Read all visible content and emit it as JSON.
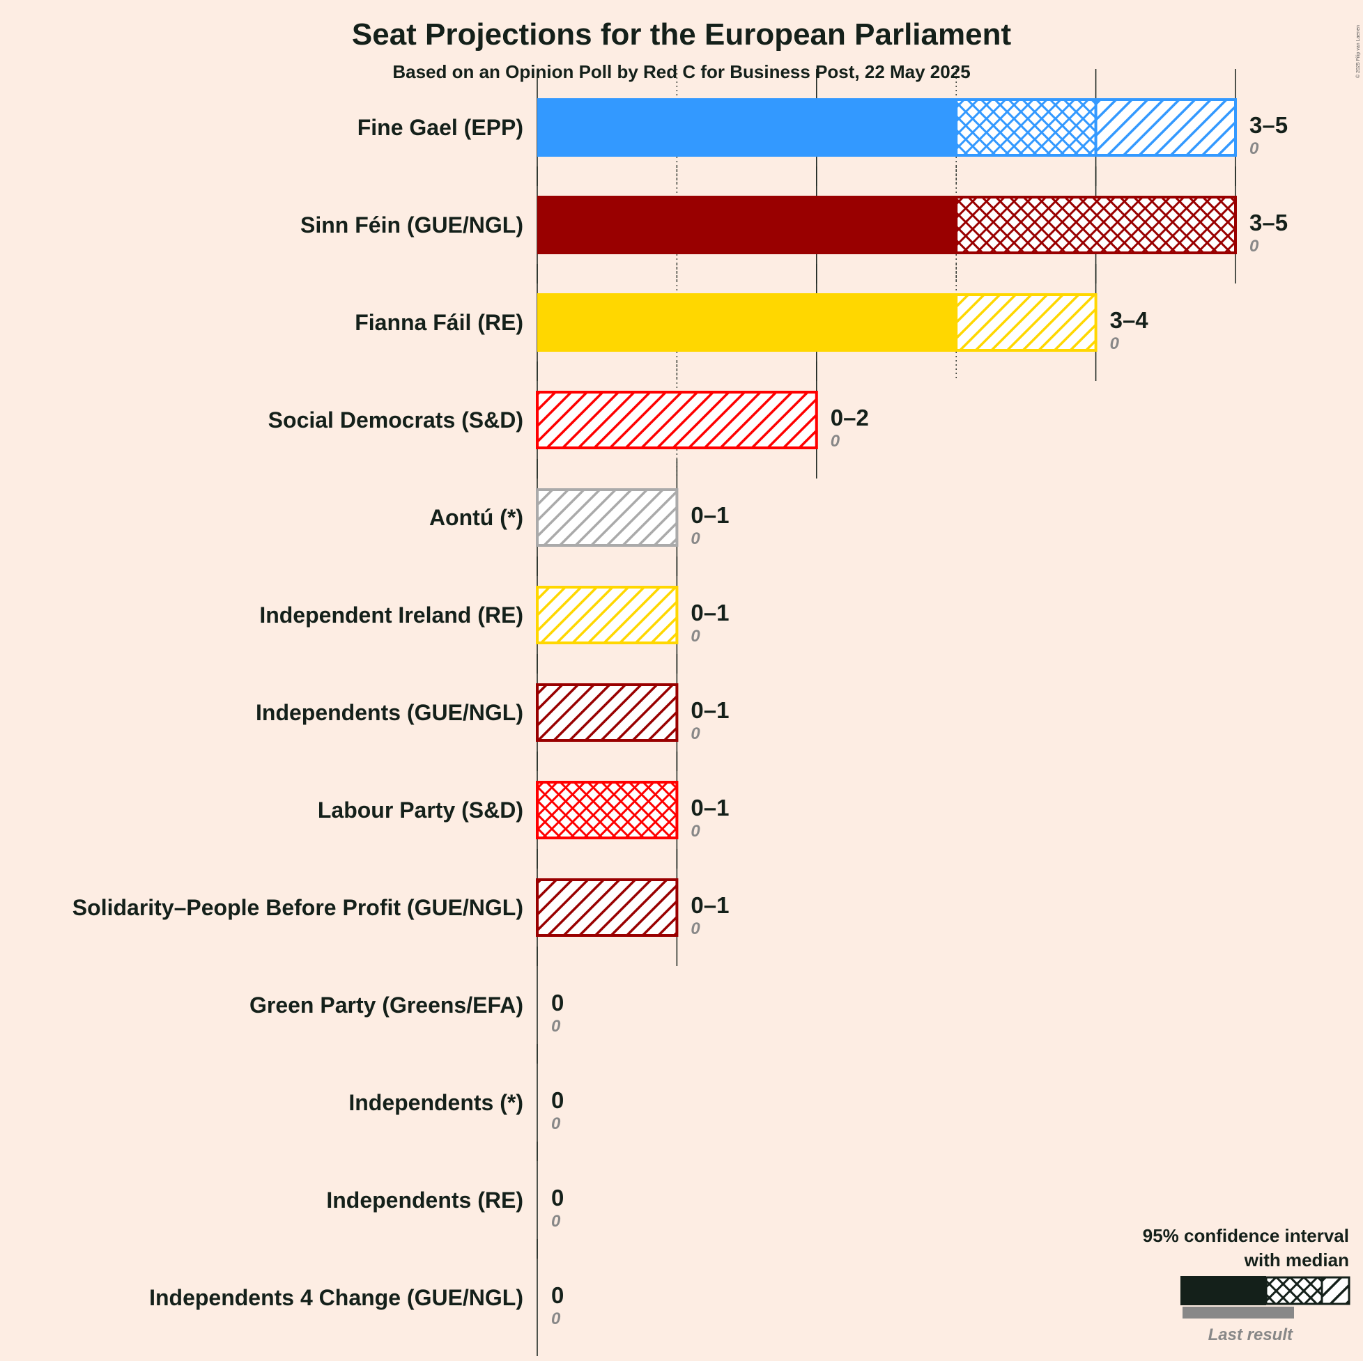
{
  "chart_data": {
    "type": "bar",
    "title": "Seat Projections for the European Parliament",
    "subtitle": "Based on an Opinion Poll by Red C for Business Post, 22 May 2025",
    "copyright": "© 2025 Filip van Laenen",
    "xlim": [
      0,
      5
    ],
    "legend": {
      "title_line1": "95% confidence interval",
      "title_line2": "with median",
      "last_result": "Last result",
      "placement": "bottom-right"
    },
    "parties": [
      {
        "name": "Fine Gael (EPP)",
        "low": 3,
        "median": 4,
        "high": 5,
        "range_label": "3–5",
        "last_result": "0",
        "color": "#3399FF"
      },
      {
        "name": "Sinn Féin (GUE/NGL)",
        "low": 3,
        "median": 5,
        "high": 5,
        "range_label": "3–5",
        "last_result": "0",
        "color": "#990000"
      },
      {
        "name": "Fianna Fáil (RE)",
        "low": 3,
        "median": 3,
        "high": 4,
        "range_label": "3–4",
        "last_result": "0",
        "color": "#FFD700"
      },
      {
        "name": "Social Democrats (S&D)",
        "low": 0,
        "median": 0,
        "high": 2,
        "range_label": "0–2",
        "last_result": "0",
        "color": "#FF0000"
      },
      {
        "name": "Aontú (*)",
        "low": 0,
        "median": 0,
        "high": 1,
        "range_label": "0–1",
        "last_result": "0",
        "color": "#AAAAAA"
      },
      {
        "name": "Independent Ireland (RE)",
        "low": 0,
        "median": 0,
        "high": 1,
        "range_label": "0–1",
        "last_result": "0",
        "color": "#FFD700"
      },
      {
        "name": "Independents (GUE/NGL)",
        "low": 0,
        "median": 0,
        "high": 1,
        "range_label": "0–1",
        "last_result": "0",
        "color": "#990000"
      },
      {
        "name": "Labour Party (S&D)",
        "low": 0,
        "median": 1,
        "high": 1,
        "range_label": "0–1",
        "last_result": "0",
        "color": "#FF0000"
      },
      {
        "name": "Solidarity–People Before Profit (GUE/NGL)",
        "low": 0,
        "median": 0,
        "high": 1,
        "range_label": "0–1",
        "last_result": "0",
        "color": "#990000"
      },
      {
        "name": "Green Party (Greens/EFA)",
        "low": 0,
        "median": 0,
        "high": 0,
        "range_label": "0",
        "last_result": "0",
        "color": "#00AA00"
      },
      {
        "name": "Independents (*)",
        "low": 0,
        "median": 0,
        "high": 0,
        "range_label": "0",
        "last_result": "0",
        "color": "#AAAAAA"
      },
      {
        "name": "Independents (RE)",
        "low": 0,
        "median": 0,
        "high": 0,
        "range_label": "0",
        "last_result": "0",
        "color": "#FFD700"
      },
      {
        "name": "Independents 4 Change (GUE/NGL)",
        "low": 0,
        "median": 0,
        "high": 0,
        "range_label": "0",
        "last_result": "0",
        "color": "#990000"
      }
    ]
  }
}
